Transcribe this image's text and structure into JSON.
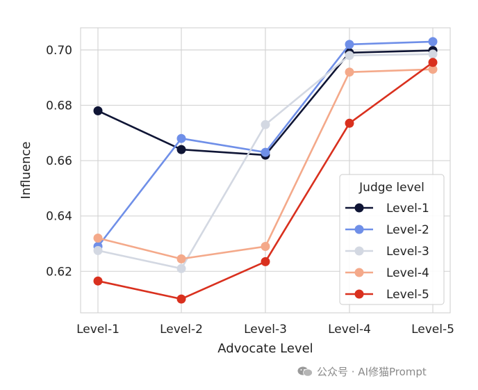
{
  "chart_data": {
    "type": "line",
    "xlabel": "Advocate Level",
    "ylabel": "Influence",
    "categories": [
      "Level-1",
      "Level-2",
      "Level-3",
      "Level-4",
      "Level-5"
    ],
    "ylim": [
      0.605,
      0.708
    ],
    "yticks": [
      0.62,
      0.64,
      0.66,
      0.68,
      0.7
    ],
    "ytick_labels": [
      "0.62",
      "0.64",
      "0.66",
      "0.68",
      "0.70"
    ],
    "grid": true,
    "legend": {
      "title": "Judge level",
      "placement": "lower-right"
    },
    "series": [
      {
        "name": "Level-1",
        "color": "#0f1535",
        "values": [
          0.678,
          0.664,
          0.662,
          0.699,
          0.6998
        ]
      },
      {
        "name": "Level-2",
        "color": "#6f8fe8",
        "values": [
          0.629,
          0.668,
          0.663,
          0.702,
          0.703
        ]
      },
      {
        "name": "Level-3",
        "color": "#d3d8e2",
        "values": [
          0.6275,
          0.621,
          0.673,
          0.698,
          0.6985
        ]
      },
      {
        "name": "Level-4",
        "color": "#f4a98a",
        "values": [
          0.632,
          0.6245,
          0.629,
          0.692,
          0.693
        ]
      },
      {
        "name": "Level-5",
        "color": "#d9301e",
        "values": [
          0.6165,
          0.61,
          0.6235,
          0.6735,
          0.6955
        ]
      }
    ]
  },
  "watermark": {
    "text": "公众号 · AI修猫Prompt",
    "icon": "wechat-icon"
  }
}
